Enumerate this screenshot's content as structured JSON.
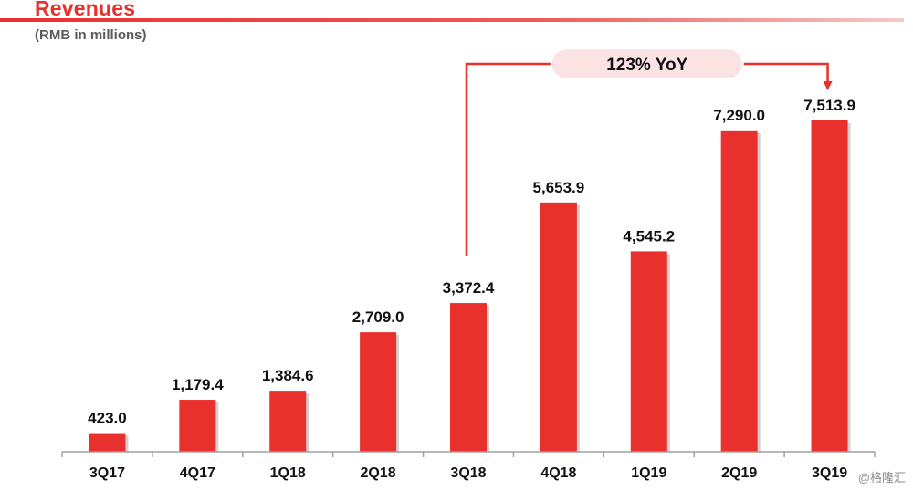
{
  "header": {
    "title": "Revenues",
    "subtitle": "(RMB in millions)"
  },
  "watermark": "@格隆汇",
  "colors": {
    "accent": "#e8302d",
    "bar": "#e8302d",
    "bar_shadow": "#9a9a9a",
    "callout_fill": "#fbe3e3",
    "axis": "#a0a0a0"
  },
  "chart_data": {
    "type": "bar",
    "title": "Revenues",
    "subtitle": "(RMB in millions)",
    "categories": [
      "3Q17",
      "4Q17",
      "1Q18",
      "2Q18",
      "3Q18",
      "4Q18",
      "1Q19",
      "2Q19",
      "3Q19"
    ],
    "values": [
      423.0,
      1179.4,
      1384.6,
      2709.0,
      3372.4,
      5653.9,
      4545.2,
      7290.0,
      7513.9
    ],
    "data_labels": [
      "423.0",
      "1,179.4",
      "1,384.6",
      "2,709.0",
      "3,372.4",
      "5,653.9",
      "4,545.2",
      "7,290.0",
      "7,513.9"
    ],
    "xlabel": "",
    "ylabel": "",
    "ylim": [
      0,
      8000
    ],
    "grid": false,
    "legend": "none",
    "annotation": {
      "text": "123% YoY",
      "from": "3Q18",
      "to": "3Q19"
    }
  }
}
